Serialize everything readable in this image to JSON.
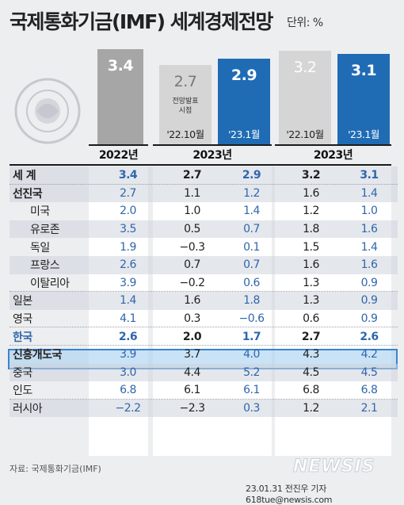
{
  "title": "국제통화기금(IMF) 세계경제전망",
  "unit": "단위: %",
  "column_headers": [
    "2022년",
    "2023년",
    "2023년"
  ],
  "top_bars": [
    {
      "value": "3.4",
      "note": "",
      "label": ""
    },
    {
      "value": "2.7",
      "note": "전망발표 시점",
      "label": "'22.10월"
    },
    {
      "value": "2.9",
      "note": "",
      "label": "'23.1월"
    },
    {
      "value": "3.2",
      "note": "",
      "label": "'22.10월"
    },
    {
      "value": "3.1",
      "note": "",
      "label": "'23.1월"
    }
  ],
  "chart_data": {
    "type": "table",
    "title": "국제통화기금(IMF) 세계경제전망",
    "unit": "%",
    "columns": [
      "2022년",
      "2023년 ('22.10월)",
      "2023년 ('23.1월)",
      "2023년 ('22.10월)",
      "2023년 ('23.1월)"
    ],
    "rows": [
      {
        "name": "세 계",
        "values": [
          "3.4",
          "2.7",
          "2.9",
          "3.2",
          "3.1"
        ]
      },
      {
        "name": "선진국",
        "values": [
          "2.7",
          "1.1",
          "1.2",
          "1.6",
          "1.4"
        ]
      },
      {
        "name": "미국",
        "values": [
          "2.0",
          "1.0",
          "1.4",
          "1.2",
          "1.0"
        ]
      },
      {
        "name": "유로존",
        "values": [
          "3.5",
          "0.5",
          "0.7",
          "1.8",
          "1.6"
        ]
      },
      {
        "name": "독일",
        "values": [
          "1.9",
          "−0.3",
          "0.1",
          "1.5",
          "1.4"
        ]
      },
      {
        "name": "프랑스",
        "values": [
          "2.6",
          "0.7",
          "0.7",
          "1.6",
          "1.6"
        ]
      },
      {
        "name": "이탈리아",
        "values": [
          "3.9",
          "−0.2",
          "0.6",
          "1.3",
          "0.9"
        ]
      },
      {
        "name": "일본",
        "values": [
          "1.4",
          "1.6",
          "1.8",
          "1.3",
          "0.9"
        ]
      },
      {
        "name": "영국",
        "values": [
          "4.1",
          "0.3",
          "−0.6",
          "0.6",
          "0.9"
        ]
      },
      {
        "name": "한국",
        "values": [
          "2.6",
          "2.0",
          "1.7",
          "2.7",
          "2.6"
        ]
      },
      {
        "name": "신흥개도국",
        "values": [
          "3.9",
          "3.7",
          "4.0",
          "4.3",
          "4.2"
        ]
      },
      {
        "name": "중국",
        "values": [
          "3.0",
          "4.4",
          "5.2",
          "4.5",
          "4.5"
        ]
      },
      {
        "name": "인도",
        "values": [
          "6.8",
          "6.1",
          "6.1",
          "6.8",
          "6.8"
        ]
      },
      {
        "name": "러시아",
        "values": [
          "−2.2",
          "−2.3",
          "0.3",
          "1.2",
          "2.1"
        ]
      }
    ]
  },
  "source": "자료: 국제통화기금(IMF)",
  "logo": "NEWSIS",
  "credit": "23.01.31 전진우 기자 618tue@newsis.com",
  "colors": {
    "blue_text": "#2f66ad",
    "blue_bar": "#1f6cb5",
    "gray_bar": "#a6a6a6",
    "light_bar": "#d5d5d5",
    "highlight": "#3a84cf"
  }
}
